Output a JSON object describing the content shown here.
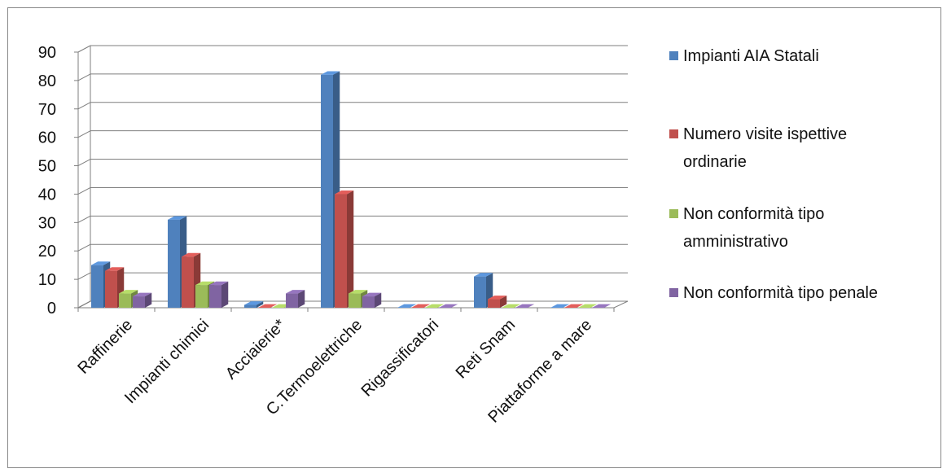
{
  "chart_data": {
    "type": "bar",
    "categories": [
      "Raffinerie",
      "Impianti chimici",
      "Acciaierie*",
      "C.Termoelettriche",
      "Rigassificatori",
      "Reti  Snam",
      "Piattaforme a mare"
    ],
    "series": [
      {
        "name": "Impianti AIA Statali",
        "values": [
          15,
          31,
          1,
          82,
          0,
          11,
          0
        ],
        "color": "#4F81BD"
      },
      {
        "name": "Numero  visite ispettive ordinarie",
        "values": [
          13,
          18,
          0,
          40,
          0,
          3,
          0
        ],
        "color": "#C0504D"
      },
      {
        "name": "Non conformità tipo amministrativo",
        "values": [
          5,
          8,
          0,
          5,
          0,
          0,
          0
        ],
        "color": "#9BBB59"
      },
      {
        "name": "Non conformità tipo penale",
        "values": [
          4,
          8,
          5,
          4,
          0,
          0,
          0
        ],
        "color": "#8064A2"
      }
    ],
    "yticks": [
      0,
      10,
      20,
      30,
      40,
      50,
      60,
      70,
      80,
      90
    ],
    "ylim": [
      0,
      90
    ],
    "grid": true,
    "legend_position": "right",
    "title": "",
    "xlabel": "",
    "ylabel": ""
  }
}
